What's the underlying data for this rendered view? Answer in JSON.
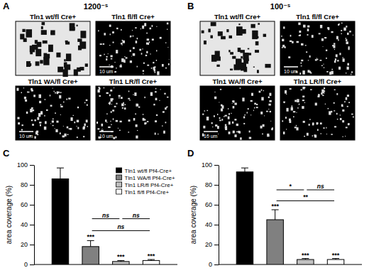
{
  "panel_letters": [
    "A",
    "B",
    "C",
    "D"
  ],
  "image_panels": [
    {
      "title": "1200⁻ˢ",
      "images": [
        {
          "label": "Tln1 wt/fl Cre+"
        },
        {
          "label": "Tln1 fl/fl Cre+",
          "scale_bar": "10 um"
        },
        {
          "label": "Tln1 WA/fl Cre+",
          "scale_bar": "10 um"
        },
        {
          "label": "Tln1 LR/fl Cre+",
          "scale_bar": "10 um"
        }
      ]
    },
    {
      "title": "100⁻ˢ",
      "images": [
        {
          "label": "Tln1 wt/fl Cre+"
        },
        {
          "label": "Tln1 fl/fl Cre+",
          "scale_bar": "10 um"
        },
        {
          "label": "Tln1 WA/fl Cre+",
          "scale_bar": "10 um"
        },
        {
          "label": "Tln1 LR/fl Cre+"
        }
      ]
    }
  ],
  "chart_data": [
    {
      "type": "bar",
      "y_label": "area coverage (%)",
      "categories": [
        null
      ],
      "ylim": [
        0,
        100
      ],
      "yticks": [
        0,
        20,
        40,
        60,
        80,
        100
      ],
      "tick_labels": "y",
      "legend": "upper right",
      "series": [
        {
          "name": "Tln1 wt/fl Pf4-Cre+",
          "color": "#000000",
          "values": [
            86
          ],
          "errors": [
            11
          ]
        },
        {
          "name": "Tln1 WA/fl Pf4-Cre+",
          "color": "#808080",
          "values": [
            18
          ],
          "errors": [
            6
          ]
        },
        {
          "name": "Tln1 LR/fl Pf4-Cre+",
          "color": "#c0c0c0",
          "values": [
            3
          ],
          "errors": [
            1
          ]
        },
        {
          "name": "Tln1 fl/fl Pf4-Cre+",
          "color": "#ffffff",
          "values": [
            4
          ],
          "errors": [
            1
          ]
        }
      ],
      "annotations": [
        {
          "series": 1,
          "text": "***"
        },
        {
          "series": 2,
          "text": "***"
        },
        {
          "series": 3,
          "text": "***"
        }
      ],
      "brackets": [
        {
          "from": 1,
          "to": 2,
          "text": "ns",
          "y": 46
        },
        {
          "from": 2,
          "to": 3,
          "text": "ns",
          "y": 46
        },
        {
          "from": 1,
          "to": 3,
          "text": "ns",
          "y": 34
        }
      ]
    },
    {
      "type": "bar",
      "y_label": "area coverage (%)",
      "categories": [
        null
      ],
      "ylim": [
        0,
        100
      ],
      "yticks": [
        0,
        20,
        40,
        60,
        80,
        100
      ],
      "tick_labels": "y",
      "series": [
        {
          "color": "#000000",
          "values": [
            93
          ],
          "errors": [
            4
          ]
        },
        {
          "color": "#808080",
          "values": [
            45
          ],
          "errors": [
            10
          ]
        },
        {
          "color": "#c0c0c0",
          "values": [
            5
          ],
          "errors": [
            1
          ]
        },
        {
          "color": "#ffffff",
          "values": [
            5
          ],
          "errors": [
            1
          ]
        }
      ],
      "annotations": [
        {
          "series": 1,
          "text": "***"
        },
        {
          "series": 2,
          "text": "***"
        },
        {
          "series": 3,
          "text": "***"
        }
      ],
      "brackets": [
        {
          "from": 1,
          "to": 2,
          "text": "*",
          "y": 75
        },
        {
          "from": 2,
          "to": 3,
          "text": "ns",
          "y": 75
        },
        {
          "from": 1,
          "to": 3,
          "text": "**",
          "y": 64
        }
      ]
    }
  ]
}
